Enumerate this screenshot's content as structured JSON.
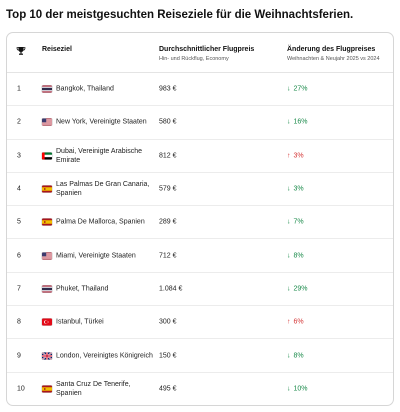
{
  "page": {
    "title": "Top 10 der meistgesuchten Reiseziele für die Weihnachtsferien."
  },
  "table": {
    "header": {
      "rank_icon": "trophy-icon",
      "destination": "Reiseziel",
      "price": "Durchschnittlicher Flugpreis",
      "price_sub": "Hin- und Rückflug, Economy",
      "change": "Änderung des Flugpreises",
      "change_sub": "Weihnachten & Neujahr 2025 vs 2024"
    },
    "rows": [
      {
        "rank": "1",
        "flag": "thailand-flag",
        "destination": "Bangkok, Thailand",
        "price": "983 €",
        "direction": "down",
        "change": "27%"
      },
      {
        "rank": "2",
        "flag": "usa-flag",
        "destination": "New York, Vereinigte Staaten",
        "price": "580 €",
        "direction": "down",
        "change": "16%"
      },
      {
        "rank": "3",
        "flag": "uae-flag",
        "destination": "Dubai, Vereinigte Arabische Emirate",
        "price": "812 €",
        "direction": "up",
        "change": "3%"
      },
      {
        "rank": "4",
        "flag": "spain-flag",
        "destination": "Las Palmas De Gran Canaria, Spanien",
        "price": "579 €",
        "direction": "down",
        "change": "3%"
      },
      {
        "rank": "5",
        "flag": "spain-flag",
        "destination": "Palma De Mallorca, Spanien",
        "price": "289 €",
        "direction": "down",
        "change": "7%"
      },
      {
        "rank": "6",
        "flag": "usa-flag",
        "destination": "Miami, Vereinigte Staaten",
        "price": "712 €",
        "direction": "down",
        "change": "8%"
      },
      {
        "rank": "7",
        "flag": "thailand-flag",
        "destination": "Phuket, Thailand",
        "price": "1.084 €",
        "direction": "down",
        "change": "29%"
      },
      {
        "rank": "8",
        "flag": "turkey-flag",
        "destination": "Istanbul, Türkei",
        "price": "300 €",
        "direction": "up",
        "change": "6%"
      },
      {
        "rank": "9",
        "flag": "uk-flag",
        "destination": "London, Vereinigtes Königreich",
        "price": "150 €",
        "direction": "down",
        "change": "8%"
      },
      {
        "rank": "10",
        "flag": "spain-flag",
        "destination": "Santa Cruz De Tenerife, Spanien",
        "price": "495 €",
        "direction": "down",
        "change": "10%"
      }
    ]
  },
  "colors": {
    "decrease": "#1a8a4a",
    "increase": "#d43636"
  }
}
